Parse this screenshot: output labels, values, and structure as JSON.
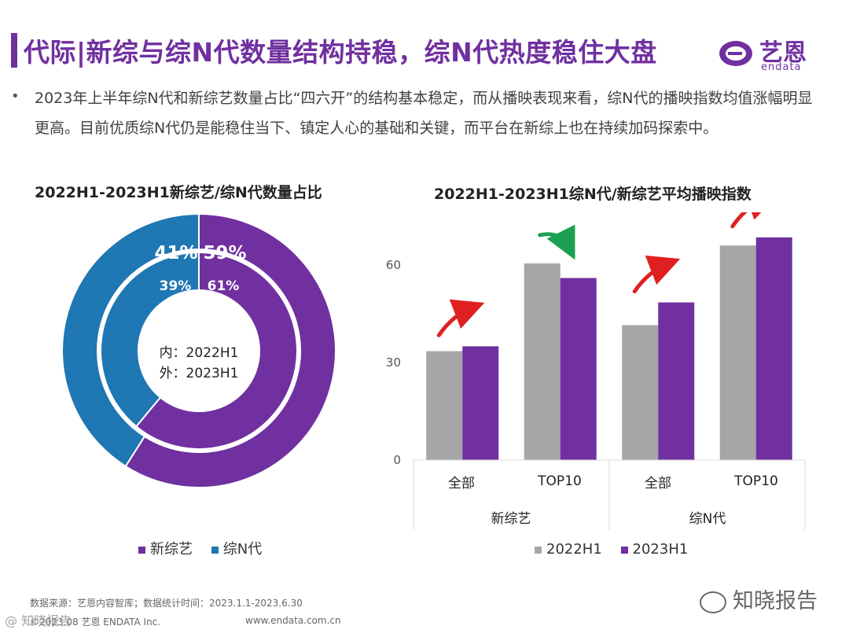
{
  "header": {
    "title": "代际|新综与综N代数量结构持稳，综N代热度稳住大盘",
    "logo_name": "艺恩",
    "logo_sub": "endata"
  },
  "summary": "2023年上半年综N代和新综艺数量占比“四六开”的结构基本稳定，而从播映表现来看，综N代的播映指数均值涨幅明显更高。目前优质综N代仍是能稳住当下、镇定人心的基础和关键，而平台在新综上也在持续加码探索中。",
  "bullet": "•",
  "colors": {
    "purple": "#7030a0",
    "blue": "#1f77b4",
    "gray": "#a6a6a6",
    "red": "#e02020",
    "green": "#1aa050"
  },
  "chart_data": [
    {
      "type": "pie",
      "title": "2022H1-2023H1新综艺/综N代数量占比",
      "center_label_inner": "内：2022H1",
      "center_label_outer": "外：2023H1",
      "rings": [
        {
          "name": "2022H1",
          "position": "inner",
          "slices": [
            {
              "label": "新综艺",
              "value": 61,
              "text": "61%"
            },
            {
              "label": "综N代",
              "value": 39,
              "text": "39%"
            }
          ]
        },
        {
          "name": "2023H1",
          "position": "outer",
          "slices": [
            {
              "label": "新综艺",
              "value": 59,
              "text": "59%"
            },
            {
              "label": "综N代",
              "value": 41,
              "text": "41%"
            }
          ]
        }
      ],
      "legend": [
        "新综艺",
        "综N代"
      ]
    },
    {
      "type": "bar",
      "title": "2022H1-2023H1综N代/新综艺平均播映指数",
      "categories": [
        "全部",
        "TOP10",
        "全部",
        "TOP10"
      ],
      "groups": [
        "新综艺",
        "综N代"
      ],
      "series": [
        {
          "name": "2022H1",
          "values": [
            33.5,
            60.5,
            41.5,
            66
          ]
        },
        {
          "name": "2023H1",
          "values": [
            35,
            56,
            48.5,
            68.5
          ]
        }
      ],
      "yticks": [
        "0",
        "30",
        "60"
      ],
      "ylim": [
        0,
        75
      ],
      "trends": [
        "up",
        "down",
        "up",
        "up"
      ]
    }
  ],
  "footer": {
    "source": "数据来源：艺恩内容智库；数据统计时间：2023.1.1-2023.6.30",
    "copyright": "©2023.08 艺恩 ENDATA Inc.",
    "url": "www.endata.com.cn"
  },
  "watermark": "知晓报告",
  "stamp": "@ 知晓报告"
}
